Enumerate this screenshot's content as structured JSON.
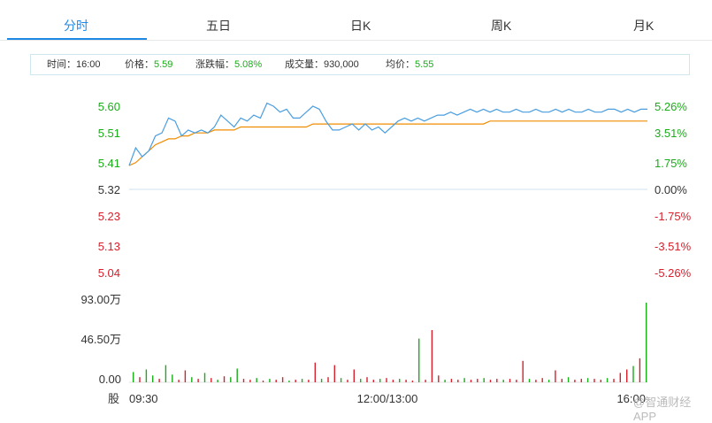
{
  "tabs": [
    {
      "label": "分时",
      "active": true
    },
    {
      "label": "五日",
      "active": false
    },
    {
      "label": "日K",
      "active": false
    },
    {
      "label": "周K",
      "active": false
    },
    {
      "label": "月K",
      "active": false
    }
  ],
  "info": {
    "time_label": "时间：",
    "time_value": "16:00",
    "price_label": "价格：",
    "price_value": "5.59",
    "change_label": "涨跌幅：",
    "change_value": "5.08%",
    "volume_label": "成交量：",
    "volume_value": "930,000",
    "avg_label": "均价：",
    "avg_value": "5.55"
  },
  "colors": {
    "up": "#1aac19",
    "down": "#d8202c",
    "price_line": "#4a9ee0",
    "avg_line": "#f08c00",
    "base_line": "#cfe0ee"
  },
  "watermark": "@智通财经APP",
  "chart_data": {
    "type": "line",
    "base_price": 5.32,
    "price_axis": {
      "ticks": [
        "5.60",
        "5.51",
        "5.41",
        "5.32",
        "5.23",
        "5.13",
        "5.04"
      ],
      "values": [
        5.6,
        5.51,
        5.41,
        5.32,
        5.23,
        5.13,
        5.04
      ],
      "ylim": [
        5.04,
        5.6
      ]
    },
    "pct_axis": {
      "ticks": [
        "5.26%",
        "3.51%",
        "1.75%",
        "0.00%",
        "-1.75%",
        "-3.51%",
        "-5.26%"
      ]
    },
    "x_ticks": [
      "09:30",
      "12:00/13:00",
      "16:00"
    ],
    "series": [
      {
        "name": "price",
        "values": [
          5.4,
          5.46,
          5.43,
          5.45,
          5.5,
          5.51,
          5.56,
          5.55,
          5.5,
          5.52,
          5.51,
          5.52,
          5.51,
          5.53,
          5.57,
          5.55,
          5.53,
          5.56,
          5.55,
          5.57,
          5.56,
          5.61,
          5.6,
          5.58,
          5.59,
          5.56,
          5.56,
          5.58,
          5.6,
          5.59,
          5.55,
          5.52,
          5.52,
          5.53,
          5.54,
          5.52,
          5.54,
          5.52,
          5.53,
          5.51,
          5.53,
          5.55,
          5.56,
          5.55,
          5.56,
          5.55,
          5.56,
          5.57,
          5.57,
          5.58,
          5.57,
          5.58,
          5.59,
          5.58,
          5.59,
          5.58,
          5.59,
          5.58,
          5.58,
          5.59,
          5.58,
          5.58,
          5.59,
          5.58,
          5.58,
          5.59,
          5.58,
          5.59,
          5.58,
          5.58,
          5.59,
          5.58,
          5.58,
          5.59,
          5.59,
          5.58,
          5.59,
          5.58,
          5.59,
          5.59
        ]
      },
      {
        "name": "avg",
        "values": [
          5.4,
          5.41,
          5.43,
          5.45,
          5.47,
          5.48,
          5.49,
          5.49,
          5.5,
          5.5,
          5.51,
          5.51,
          5.51,
          5.52,
          5.52,
          5.52,
          5.52,
          5.53,
          5.53,
          5.53,
          5.53,
          5.53,
          5.53,
          5.53,
          5.53,
          5.53,
          5.53,
          5.53,
          5.54,
          5.54,
          5.54,
          5.54,
          5.54,
          5.54,
          5.54,
          5.54,
          5.54,
          5.54,
          5.54,
          5.54,
          5.54,
          5.54,
          5.54,
          5.54,
          5.54,
          5.54,
          5.54,
          5.54,
          5.54,
          5.54,
          5.54,
          5.54,
          5.54,
          5.54,
          5.54,
          5.55,
          5.55,
          5.55,
          5.55,
          5.55,
          5.55,
          5.55,
          5.55,
          5.55,
          5.55,
          5.55,
          5.55,
          5.55,
          5.55,
          5.55,
          5.55,
          5.55,
          5.55,
          5.55,
          5.55,
          5.55,
          5.55,
          5.55,
          5.55,
          5.55
        ]
      }
    ],
    "volume_axis": {
      "ticks": [
        "93.00万",
        "46.50万",
        "0.00"
      ],
      "max": 930000
    },
    "volume_unit": "股",
    "volume": [
      {
        "v": 120000,
        "up": true
      },
      {
        "v": 60000,
        "up": false
      },
      {
        "v": 150000,
        "up": true
      },
      {
        "v": 80000,
        "up": true
      },
      {
        "v": 40000,
        "up": false
      },
      {
        "v": 200000,
        "up": true
      },
      {
        "v": 90000,
        "up": true
      },
      {
        "v": 30000,
        "up": false
      },
      {
        "v": 140000,
        "up": false
      },
      {
        "v": 60000,
        "up": true
      },
      {
        "v": 40000,
        "up": false
      },
      {
        "v": 110000,
        "up": true
      },
      {
        "v": 50000,
        "up": false
      },
      {
        "v": 30000,
        "up": true
      },
      {
        "v": 70000,
        "up": false
      },
      {
        "v": 60000,
        "up": true
      },
      {
        "v": 160000,
        "up": true
      },
      {
        "v": 40000,
        "up": false
      },
      {
        "v": 30000,
        "up": false
      },
      {
        "v": 50000,
        "up": true
      },
      {
        "v": 20000,
        "up": false
      },
      {
        "v": 40000,
        "up": true
      },
      {
        "v": 30000,
        "up": false
      },
      {
        "v": 60000,
        "up": false
      },
      {
        "v": 20000,
        "up": true
      },
      {
        "v": 30000,
        "up": false
      },
      {
        "v": 40000,
        "up": true
      },
      {
        "v": 30000,
        "up": false
      },
      {
        "v": 230000,
        "up": false
      },
      {
        "v": 40000,
        "up": true
      },
      {
        "v": 60000,
        "up": false
      },
      {
        "v": 200000,
        "up": false
      },
      {
        "v": 50000,
        "up": true
      },
      {
        "v": 30000,
        "up": false
      },
      {
        "v": 150000,
        "up": false
      },
      {
        "v": 40000,
        "up": true
      },
      {
        "v": 60000,
        "up": false
      },
      {
        "v": 30000,
        "up": false
      },
      {
        "v": 40000,
        "up": true
      },
      {
        "v": 50000,
        "up": false
      },
      {
        "v": 30000,
        "up": false
      },
      {
        "v": 40000,
        "up": true
      },
      {
        "v": 30000,
        "up": false
      },
      {
        "v": 20000,
        "up": false
      },
      {
        "v": 510000,
        "up": true
      },
      {
        "v": 30000,
        "up": false
      },
      {
        "v": 610000,
        "up": false
      },
      {
        "v": 80000,
        "up": false
      },
      {
        "v": 30000,
        "up": true
      },
      {
        "v": 40000,
        "up": false
      },
      {
        "v": 30000,
        "up": false
      },
      {
        "v": 50000,
        "up": true
      },
      {
        "v": 30000,
        "up": false
      },
      {
        "v": 40000,
        "up": false
      },
      {
        "v": 50000,
        "up": true
      },
      {
        "v": 30000,
        "up": false
      },
      {
        "v": 40000,
        "up": false
      },
      {
        "v": 30000,
        "up": true
      },
      {
        "v": 40000,
        "up": false
      },
      {
        "v": 30000,
        "up": false
      },
      {
        "v": 250000,
        "up": false
      },
      {
        "v": 40000,
        "up": true
      },
      {
        "v": 30000,
        "up": false
      },
      {
        "v": 50000,
        "up": false
      },
      {
        "v": 30000,
        "up": true
      },
      {
        "v": 140000,
        "up": false
      },
      {
        "v": 40000,
        "up": false
      },
      {
        "v": 60000,
        "up": true
      },
      {
        "v": 30000,
        "up": false
      },
      {
        "v": 40000,
        "up": false
      },
      {
        "v": 50000,
        "up": true
      },
      {
        "v": 40000,
        "up": false
      },
      {
        "v": 30000,
        "up": false
      },
      {
        "v": 50000,
        "up": true
      },
      {
        "v": 40000,
        "up": false
      },
      {
        "v": 110000,
        "up": false
      },
      {
        "v": 150000,
        "up": false
      },
      {
        "v": 190000,
        "up": true
      },
      {
        "v": 280000,
        "up": false
      },
      {
        "v": 930000,
        "up": true
      }
    ]
  }
}
